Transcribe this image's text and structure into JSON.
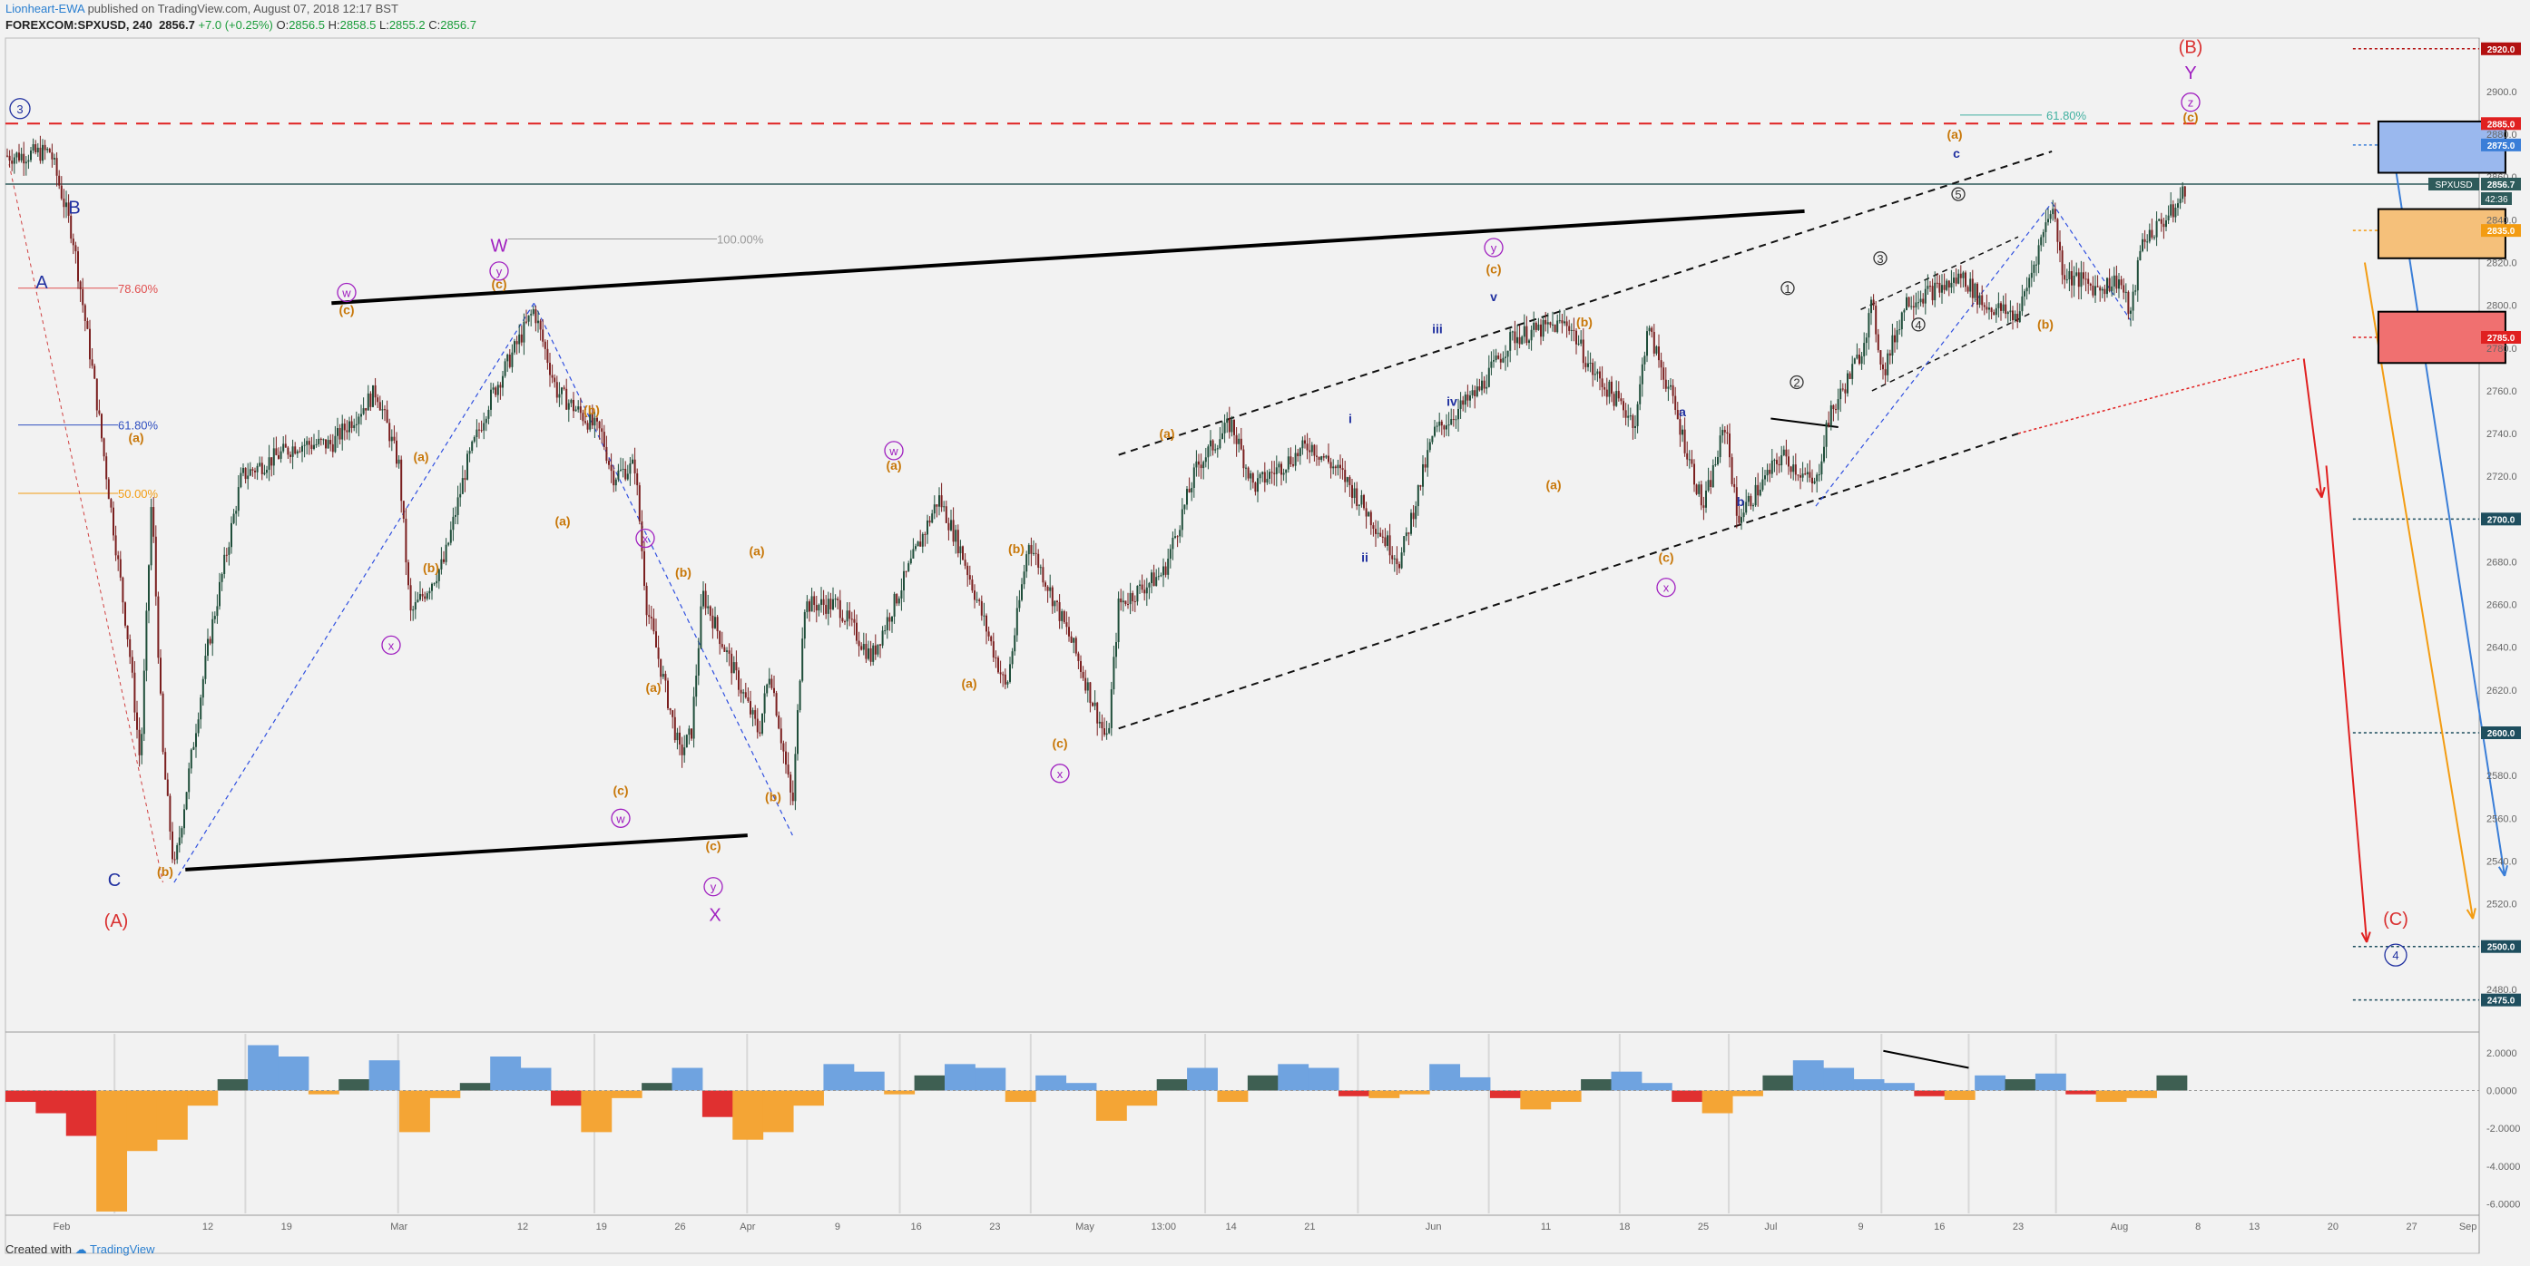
{
  "header": {
    "author": "Lionheart-EWA",
    "published": "published on TradingView.com, August 07, 2018 12:17 BST",
    "symbol": "FOREXCOM:SPXUSD, 240",
    "last": "2856.7",
    "change": "+7.0 (+0.25%)",
    "o_label": "O:",
    "o": "2856.5",
    "h_label": "H:",
    "h": "2858.5",
    "l_label": "L:",
    "l": "2855.2",
    "c_label": "C:",
    "c": "2856.7"
  },
  "footer": {
    "created_with": "Created with",
    "brand": "TradingView"
  },
  "colors": {
    "bull": "#1f4e3a",
    "bear": "#7a1f1f",
    "wave_orange": "#c8780a",
    "wave_purple": "#a020c0",
    "wave_blue": "#2030a0",
    "red": "#d93030"
  },
  "chart_data": [
    {
      "type": "candlestick",
      "symbol": "FOREXCOM:SPXUSD",
      "interval": "240",
      "ylim": [
        2460,
        2925
      ],
      "y_ticks": [
        2480,
        2500,
        2520,
        2540,
        2560,
        2580,
        2600,
        2620,
        2640,
        2660,
        2680,
        2700,
        2720,
        2740,
        2760,
        2780,
        2800,
        2820,
        2840,
        2860,
        2880,
        2900
      ],
      "x_tick_labels": [
        "Feb",
        "12",
        "19",
        "Mar",
        "12",
        "19",
        "26",
        "Apr",
        "9",
        "16",
        "23",
        "May",
        "13:00",
        "14",
        "21",
        "Jun",
        "11",
        "18",
        "25",
        "Jul",
        "9",
        "16",
        "23",
        "Aug",
        "8",
        "13",
        "20",
        "27",
        "Sep"
      ],
      "price_series": [
        {
          "x": "Jan 26",
          "y": 2870
        },
        {
          "x": "Jan 29",
          "y": 2872
        },
        {
          "x": "Jan 31",
          "y": 2832
        },
        {
          "x": "Feb 02",
          "y": 2760
        },
        {
          "x": "Feb 05",
          "y": 2640
        },
        {
          "x": "Feb 06",
          "y": 2585
        },
        {
          "x": "Feb 07",
          "y": 2710
        },
        {
          "x": "Feb 08",
          "y": 2590
        },
        {
          "x": "Feb 09",
          "y": 2535
        },
        {
          "x": "Feb 12",
          "y": 2640
        },
        {
          "x": "Feb 15",
          "y": 2720
        },
        {
          "x": "Feb 20",
          "y": 2735
        },
        {
          "x": "Feb 23",
          "y": 2735
        },
        {
          "x": "Feb 27",
          "y": 2760
        },
        {
          "x": "Mar 01",
          "y": 2725
        },
        {
          "x": "Mar 02",
          "y": 2655
        },
        {
          "x": "Mar 05",
          "y": 2680
        },
        {
          "x": "Mar 07",
          "y": 2725
        },
        {
          "x": "Mar 09",
          "y": 2755
        },
        {
          "x": "Mar 13",
          "y": 2798
        },
        {
          "x": "Mar 15",
          "y": 2760
        },
        {
          "x": "Mar 19",
          "y": 2740
        },
        {
          "x": "Mar 20",
          "y": 2720
        },
        {
          "x": "Mar 22",
          "y": 2725
        },
        {
          "x": "Mar 23",
          "y": 2660
        },
        {
          "x": "Mar 26",
          "y": 2590
        },
        {
          "x": "Mar 27",
          "y": 2600
        },
        {
          "x": "Mar 28",
          "y": 2665
        },
        {
          "x": "Apr 02",
          "y": 2600
        },
        {
          "x": "Apr 03",
          "y": 2630
        },
        {
          "x": "Apr 05",
          "y": 2565
        },
        {
          "x": "Apr 06",
          "y": 2660
        },
        {
          "x": "Apr 09",
          "y": 2660
        },
        {
          "x": "Apr 12",
          "y": 2635
        },
        {
          "x": "Apr 18",
          "y": 2710
        },
        {
          "x": "Apr 20",
          "y": 2685
        },
        {
          "x": "Apr 24",
          "y": 2620
        },
        {
          "x": "Apr 26",
          "y": 2690
        },
        {
          "x": "Apr 30",
          "y": 2640
        },
        {
          "x": "May 03",
          "y": 2595
        },
        {
          "x": "May 04",
          "y": 2660
        },
        {
          "x": "May 08",
          "y": 2675
        },
        {
          "x": "May 11",
          "y": 2725
        },
        {
          "x": "May 14",
          "y": 2745
        },
        {
          "x": "May 16",
          "y": 2715
        },
        {
          "x": "May 21",
          "y": 2735
        },
        {
          "x": "May 24",
          "y": 2720
        },
        {
          "x": "May 29",
          "y": 2680
        },
        {
          "x": "Jun 01",
          "y": 2740
        },
        {
          "x": "Jun 05",
          "y": 2760
        },
        {
          "x": "Jun 08",
          "y": 2785
        },
        {
          "x": "Jun 13",
          "y": 2792
        },
        {
          "x": "Jun 15",
          "y": 2770
        },
        {
          "x": "Jun 19",
          "y": 2745
        },
        {
          "x": "Jun 20",
          "y": 2790
        },
        {
          "x": "Jun 22",
          "y": 2760
        },
        {
          "x": "Jun 25",
          "y": 2705
        },
        {
          "x": "Jun 27",
          "y": 2745
        },
        {
          "x": "Jun 28",
          "y": 2700
        },
        {
          "x": "Jul 02",
          "y": 2730
        },
        {
          "x": "Jul 05",
          "y": 2715
        },
        {
          "x": "Jul 06",
          "y": 2745
        },
        {
          "x": "Jul 09",
          "y": 2778
        },
        {
          "x": "Jul 10",
          "y": 2800
        },
        {
          "x": "Jul 11",
          "y": 2768
        },
        {
          "x": "Jul 13",
          "y": 2802
        },
        {
          "x": "Jul 17",
          "y": 2810
        },
        {
          "x": "Jul 18",
          "y": 2814
        },
        {
          "x": "Jul 20",
          "y": 2800
        },
        {
          "x": "Jul 23",
          "y": 2795
        },
        {
          "x": "Jul 25",
          "y": 2830
        },
        {
          "x": "Jul 26",
          "y": 2848
        },
        {
          "x": "Jul 27",
          "y": 2815
        },
        {
          "x": "Jul 30",
          "y": 2808
        },
        {
          "x": "Aug 01",
          "y": 2812
        },
        {
          "x": "Aug 02",
          "y": 2795
        },
        {
          "x": "Aug 03",
          "y": 2830
        },
        {
          "x": "Aug 06",
          "y": 2845
        },
        {
          "x": "Aug 07",
          "y": 2856.7
        }
      ],
      "horizontal_levels": [
        {
          "value": 2920.0,
          "label": "2920.0",
          "color": "#b31010",
          "style": "dotted"
        },
        {
          "value": 2885.0,
          "label": "2885.0",
          "color": "#e02020",
          "style": "dashed"
        },
        {
          "value": 2875.0,
          "label": "2875.0",
          "color": "#3a7ed8",
          "style": "dotted"
        },
        {
          "value": 2856.7,
          "label": "SPXUSD",
          "color": "#2e5b5b",
          "style": "solid"
        },
        {
          "value": 2835.0,
          "label": "2835.0",
          "color": "#f39c12",
          "style": "dotted"
        },
        {
          "value": 2785.0,
          "label": "2785.0",
          "color": "#e02020",
          "style": "dotted"
        },
        {
          "value": 2700.0,
          "label": "2700.0",
          "color": "#1e4e5e",
          "style": "dotted"
        },
        {
          "value": 2600.0,
          "label": "2600.0",
          "color": "#1e4e5e",
          "style": "dotted"
        },
        {
          "value": 2500.0,
          "label": "2500.0",
          "color": "#1e4e5e",
          "style": "dotted"
        },
        {
          "value": 2475.0,
          "label": "2475.0",
          "color": "#1e4e5e",
          "style": "dotted"
        }
      ],
      "price_tag_labels": {
        "last_symbol": "SPXUSD",
        "last": "2856.7",
        "countdown": "42:36"
      },
      "fib_labels": [
        "78.60%",
        "61.80%",
        "50.00%",
        "100.00%",
        "61.80%"
      ],
      "wave_labels": {
        "w3": "3",
        "A": "A",
        "B": "B",
        "C": "C",
        "A_paren": "(A)",
        "B_paren": "(B)",
        "C_paren": "(C)",
        "W": "W",
        "X": "X",
        "Y": "Y",
        "w4": "4",
        "a": "(a)",
        "b": "(b)",
        "c": "(c)",
        "w": "w",
        "x": "x",
        "y": "y",
        "z": "z",
        "i": "i",
        "ii": "ii",
        "iii": "iii",
        "iv": "iv",
        "v": "v",
        "la": "a",
        "lb": "b",
        "lc": "c",
        "n1": "1",
        "n2": "2",
        "n3": "3",
        "n4": "4",
        "n5": "5"
      }
    },
    {
      "type": "histogram",
      "name": "oscillator",
      "ylim": [
        -6.5,
        3
      ],
      "y_ticks": [
        2.0,
        0.0,
        -2.0,
        -4.0,
        -6.0
      ],
      "y_tick_labels": [
        "2.0000",
        "0.0000",
        "-2.0000",
        "-4.0000",
        "-6.0000"
      ],
      "values": [
        -0.6,
        -1.2,
        -2.4,
        -6.4,
        -3.2,
        -2.6,
        -0.8,
        0.6,
        2.4,
        1.8,
        -0.2,
        0.6,
        1.6,
        -2.2,
        -0.4,
        0.4,
        1.8,
        1.2,
        -0.8,
        -2.2,
        -0.4,
        0.4,
        1.2,
        -1.4,
        -2.6,
        -2.2,
        -0.8,
        1.4,
        1.0,
        -0.2,
        0.8,
        1.4,
        1.2,
        -0.6,
        0.8,
        0.4,
        -1.6,
        -0.8,
        0.6,
        1.2,
        -0.6,
        0.8,
        1.4,
        1.2,
        -0.3,
        -0.4,
        -0.2,
        1.4,
        0.7,
        -0.4,
        -1.0,
        -0.6,
        0.6,
        1.0,
        0.4,
        -0.6,
        -1.2,
        -0.3,
        0.8,
        1.6,
        1.2,
        0.6,
        0.4,
        -0.3,
        -0.5,
        0.8,
        0.6,
        0.9,
        -0.2,
        -0.6,
        -0.4,
        0.8
      ]
    }
  ]
}
